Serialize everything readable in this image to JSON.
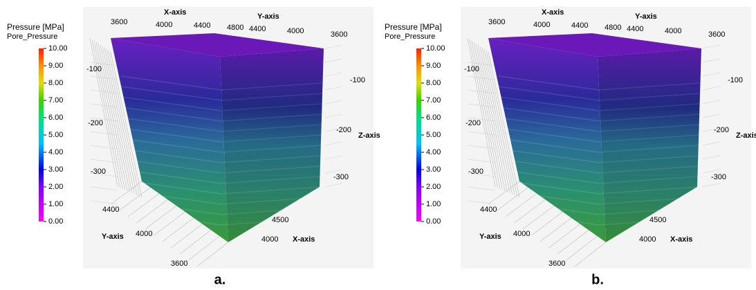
{
  "panels": [
    {
      "label": "a.",
      "colorbar": {
        "title": "Pressure [MPa]",
        "subtitle": "Pore_Pressure",
        "ticks": [
          "10.00",
          "9.00",
          "8.00",
          "7.00",
          "6.00",
          "5.00",
          "4.00",
          "3.00",
          "2.00",
          "1.00",
          "0.00"
        ]
      },
      "axes": {
        "x_label_top": "X-axis",
        "y_label_top": "Y-axis",
        "z_label": "Z-axis",
        "y_label_bottom": "Y-axis",
        "x_label_bottom": "X-axis",
        "top_x_ticks": [
          "3600",
          "4000",
          "4400",
          "4800"
        ],
        "top_y_ticks": [
          "4400",
          "4000",
          "3600"
        ],
        "left_z_ticks": [
          "-100",
          "-200",
          "-300"
        ],
        "right_z_ticks": [
          "-100",
          "-200",
          "-300"
        ],
        "bottom_y_ticks": [
          "4400",
          "4000",
          "3600"
        ],
        "bottom_x_ticks": [
          "4500",
          "4000"
        ]
      }
    },
    {
      "label": "b.",
      "colorbar": {
        "title": "Pressure [MPa]",
        "subtitle": "Pore_Pressure",
        "ticks": [
          "10.00",
          "9.00",
          "8.00",
          "7.00",
          "6.00",
          "5.00",
          "4.00",
          "3.00",
          "2.00",
          "1.00",
          "0.00"
        ]
      },
      "axes": {
        "x_label_top": "X-axis",
        "y_label_top": "Y-axis",
        "z_label": "Z-axis",
        "y_label_bottom": "Y-axis",
        "x_label_bottom": "X-axis",
        "top_x_ticks": [
          "3600",
          "4000",
          "4400",
          "4800"
        ],
        "top_y_ticks": [
          "4400",
          "4000",
          "3600"
        ],
        "left_z_ticks": [
          "-100",
          "-200",
          "-300"
        ],
        "right_z_ticks": [
          "-100",
          "-200",
          "-300"
        ],
        "bottom_y_ticks": [
          "4400",
          "4000",
          "3600"
        ],
        "bottom_x_ticks": [
          "4500",
          "4000"
        ]
      }
    }
  ]
}
